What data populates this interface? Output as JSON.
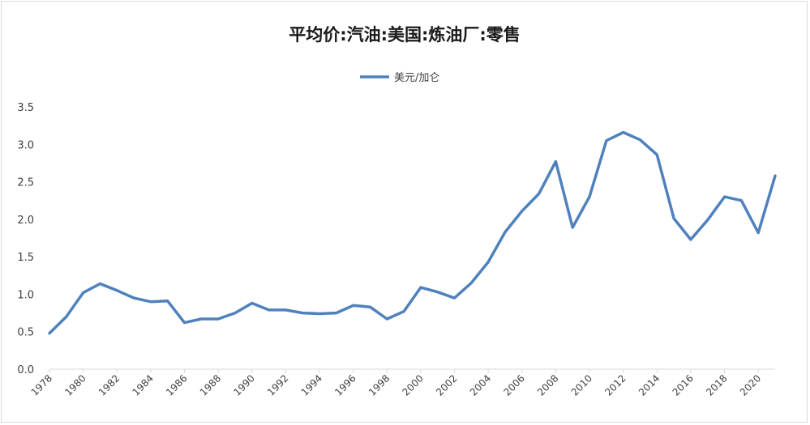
{
  "chart_data": {
    "type": "line",
    "title": "平均价:汽油:美国:炼油厂:零售",
    "legend_position": "top",
    "grid": false,
    "ylim": [
      0,
      3.5
    ],
    "yticks": [
      "0.0",
      "0.5",
      "1.0",
      "1.5",
      "2.0",
      "2.5",
      "3.0",
      "3.5"
    ],
    "xticks": [
      "1978",
      "1980",
      "1982",
      "1984",
      "1986",
      "1988",
      "1990",
      "1992",
      "1994",
      "1996",
      "1998",
      "2000",
      "2002",
      "2004",
      "2006",
      "2008",
      "2010",
      "2012",
      "2014",
      "2016",
      "2018",
      "2020"
    ],
    "x": [
      1978,
      1979,
      1980,
      1981,
      1982,
      1983,
      1984,
      1985,
      1986,
      1987,
      1988,
      1989,
      1990,
      1991,
      1992,
      1993,
      1994,
      1995,
      1996,
      1997,
      1998,
      1999,
      2000,
      2001,
      2002,
      2003,
      2004,
      2005,
      2006,
      2007,
      2008,
      2009,
      2010,
      2011,
      2012,
      2013,
      2014,
      2015,
      2016,
      2017,
      2018,
      2019,
      2020,
      2021
    ],
    "series": [
      {
        "name": "美元/加仑",
        "color": "#4f81bd",
        "values": [
          0.48,
          0.7,
          1.02,
          1.14,
          1.05,
          0.95,
          0.9,
          0.91,
          0.62,
          0.67,
          0.67,
          0.75,
          0.88,
          0.79,
          0.79,
          0.75,
          0.74,
          0.75,
          0.85,
          0.83,
          0.67,
          0.77,
          1.09,
          1.03,
          0.95,
          1.15,
          1.43,
          1.83,
          2.11,
          2.34,
          2.77,
          1.89,
          2.3,
          3.05,
          3.16,
          3.06,
          2.86,
          2.01,
          1.73,
          1.99,
          2.3,
          2.25,
          1.82,
          2.58
        ]
      }
    ]
  }
}
